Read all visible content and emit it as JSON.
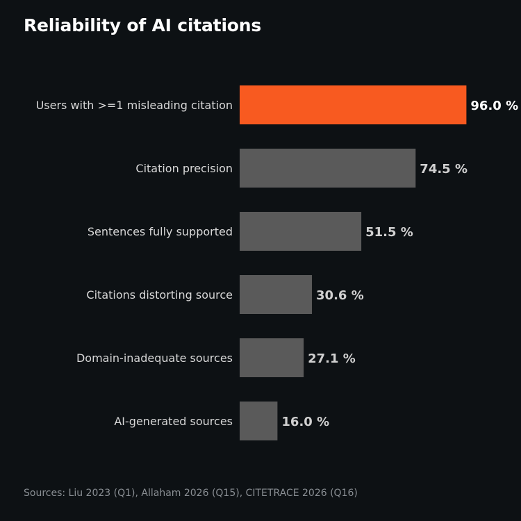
{
  "chart_data": {
    "type": "bar",
    "orientation": "horizontal",
    "title": "Reliability of AI citations",
    "categories": [
      "Users with >=1 misleading citation",
      "Citation precision",
      "Sentences fully supported",
      "Citations distorting source",
      "Domain-inadequate sources",
      "AI-generated sources"
    ],
    "values": [
      96.0,
      74.5,
      51.5,
      30.6,
      27.1,
      16.0
    ],
    "value_labels": [
      "96.0 %",
      "74.5 %",
      "51.5 %",
      "30.6 %",
      "27.1 %",
      "16.0 %"
    ],
    "xlim": [
      0,
      100
    ],
    "grid": false,
    "legend": "none",
    "highlight_index": 0
  },
  "colors": {
    "background": "#0d1114",
    "highlight_bar": "#f85a20",
    "default_bar": "#5a5a5a",
    "highlight_label": "#ffffff",
    "default_label": "#d0d0d0",
    "category_text": "#d8d8d8"
  },
  "footer": {
    "sources": "Sources: Liu 2023 (Q1), Allaham 2026 (Q15), CITETRACE 2026 (Q16)"
  }
}
